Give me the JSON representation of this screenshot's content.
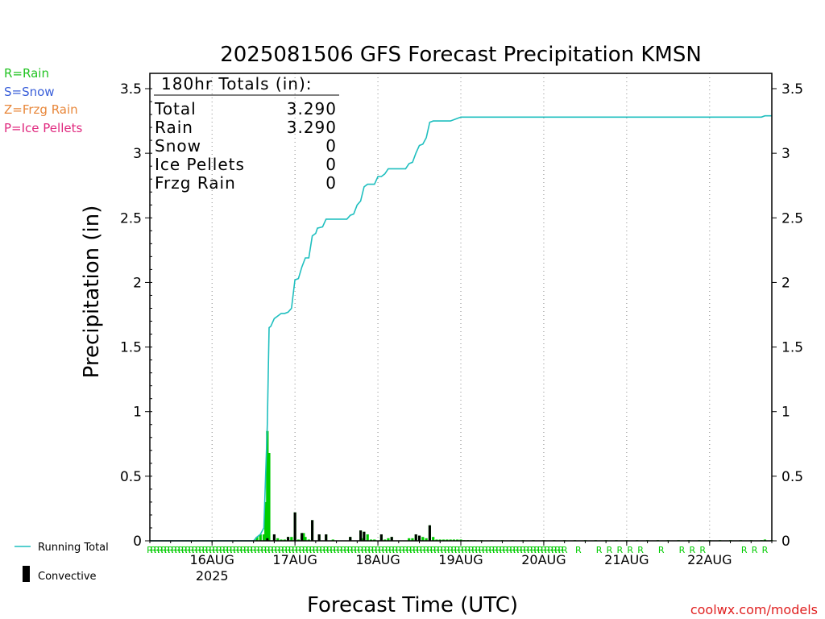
{
  "chart_data": {
    "type": "bar",
    "title": "2025081506 GFS Forecast Precipitation KMSN",
    "xlabel": "Forecast Time (UTC)",
    "ylabel": "Precipitation (in)",
    "ylim": [
      0,
      3.6
    ],
    "xlim_hours": [
      0,
      180
    ],
    "yticks": [
      "0",
      "0.5",
      "1",
      "1.5",
      "2",
      "2.5",
      "3",
      "3.5"
    ],
    "yticks_values": [
      0,
      0.5,
      1,
      1.5,
      2,
      2.5,
      3,
      3.5
    ],
    "xticks": [
      {
        "hour": 18,
        "label": "16AUG",
        "sub": "2025"
      },
      {
        "hour": 42,
        "label": "17AUG",
        "sub": ""
      },
      {
        "hour": 66,
        "label": "18AUG",
        "sub": ""
      },
      {
        "hour": 90,
        "label": "19AUG",
        "sub": ""
      },
      {
        "hour": 114,
        "label": "20AUG",
        "sub": ""
      },
      {
        "hour": 138,
        "label": "21AUG",
        "sub": ""
      },
      {
        "hour": 162,
        "label": "22AUG",
        "sub": ""
      }
    ],
    "grid": "vertical-dotted",
    "type_legend": [
      {
        "text": "R=Rain",
        "color": "#22c322"
      },
      {
        "text": "S=Snow",
        "color": "#3a5fd9"
      },
      {
        "text": "Z=Frzg Rain",
        "color": "#e8873a"
      },
      {
        "text": "P=Ice Pellets",
        "color": "#e0297f"
      }
    ],
    "series_legend": [
      {
        "text": "Running Total",
        "color": "#1fbfbf"
      },
      {
        "text": "Convective",
        "color": "#000000"
      }
    ],
    "totals_box": {
      "header": "180hr Totals (in):",
      "rows": [
        {
          "label": "Total",
          "value": "3.290"
        },
        {
          "label": "Rain",
          "value": "3.290"
        },
        {
          "label": "Snow",
          "value": "0"
        },
        {
          "label": "Ice Pellets",
          "value": "0"
        },
        {
          "label": "Frzg Rain",
          "value": "0"
        }
      ]
    },
    "running_total": [
      [
        0,
        0
      ],
      [
        30,
        0
      ],
      [
        31,
        0.03
      ],
      [
        32,
        0.05
      ],
      [
        33,
        0.1
      ],
      [
        34,
        0.9
      ],
      [
        34.5,
        1.65
      ],
      [
        35,
        1.66
      ],
      [
        36,
        1.72
      ],
      [
        37,
        1.74
      ],
      [
        38,
        1.76
      ],
      [
        39,
        1.76
      ],
      [
        40,
        1.77
      ],
      [
        41,
        1.8
      ],
      [
        42,
        2.02
      ],
      [
        43,
        2.03
      ],
      [
        44,
        2.12
      ],
      [
        45,
        2.19
      ],
      [
        46,
        2.19
      ],
      [
        47,
        2.36
      ],
      [
        48,
        2.38
      ],
      [
        48.5,
        2.42
      ],
      [
        50,
        2.43
      ],
      [
        51,
        2.49
      ],
      [
        57,
        2.49
      ],
      [
        58,
        2.52
      ],
      [
        59,
        2.53
      ],
      [
        60,
        2.6
      ],
      [
        61,
        2.63
      ],
      [
        62,
        2.74
      ],
      [
        63,
        2.76
      ],
      [
        65,
        2.76
      ],
      [
        66,
        2.82
      ],
      [
        67,
        2.82
      ],
      [
        68,
        2.84
      ],
      [
        69,
        2.88
      ],
      [
        74,
        2.88
      ],
      [
        75,
        2.92
      ],
      [
        76,
        2.93
      ],
      [
        77,
        3.0
      ],
      [
        78,
        3.06
      ],
      [
        79,
        3.07
      ],
      [
        80,
        3.12
      ],
      [
        81,
        3.24
      ],
      [
        82,
        3.25
      ],
      [
        87,
        3.25
      ],
      [
        88,
        3.26
      ],
      [
        89,
        3.27
      ],
      [
        90,
        3.28
      ],
      [
        177,
        3.28
      ],
      [
        178,
        3.29
      ],
      [
        180,
        3.29
      ]
    ],
    "bars": [
      [
        31,
        0.03
      ],
      [
        32,
        0.05
      ],
      [
        33,
        0.05
      ],
      [
        33.5,
        0.3
      ],
      [
        34,
        0.85
      ],
      [
        34.5,
        0.68
      ],
      [
        36,
        0.05
      ],
      [
        37,
        0.02
      ],
      [
        38,
        0.01
      ],
      [
        39,
        0.01
      ],
      [
        40,
        0.03
      ],
      [
        41,
        0.03
      ],
      [
        42,
        0.22
      ],
      [
        43,
        0.01
      ],
      [
        44,
        0.06
      ],
      [
        44.5,
        0.06
      ],
      [
        45,
        0.03
      ],
      [
        46,
        0.01
      ],
      [
        47,
        0.16
      ],
      [
        49,
        0.05
      ],
      [
        51,
        0.05
      ],
      [
        53,
        0.01
      ],
      [
        58,
        0.03
      ],
      [
        61,
        0.08
      ],
      [
        61.5,
        0.02
      ],
      [
        62,
        0.07
      ],
      [
        63,
        0.05
      ],
      [
        64,
        0.01
      ],
      [
        65,
        0.01
      ],
      [
        67,
        0.05
      ],
      [
        68,
        0.01
      ],
      [
        69,
        0.02
      ],
      [
        70,
        0.03
      ],
      [
        75,
        0.02
      ],
      [
        76,
        0.02
      ],
      [
        77,
        0.05
      ],
      [
        78,
        0.04
      ],
      [
        79,
        0.03
      ],
      [
        80,
        0.02
      ],
      [
        81,
        0.12
      ],
      [
        82,
        0.03
      ],
      [
        83,
        0.01
      ],
      [
        84,
        0.01
      ],
      [
        85,
        0.01
      ],
      [
        86,
        0.01
      ],
      [
        87,
        0.01
      ],
      [
        88,
        0.01
      ],
      [
        89,
        0.01
      ],
      [
        90,
        0.01
      ],
      [
        91,
        0.005
      ],
      [
        92,
        0.005
      ],
      [
        93,
        0.005
      ],
      [
        94,
        0.005
      ],
      [
        96,
        0.005
      ],
      [
        99,
        0.005
      ],
      [
        102,
        0.005
      ],
      [
        105,
        0.005
      ],
      [
        108,
        0.005
      ],
      [
        111,
        0.005
      ],
      [
        114,
        0.005
      ],
      [
        117,
        0.005
      ],
      [
        120,
        0.005
      ],
      [
        123,
        0.005
      ],
      [
        126,
        0.005
      ],
      [
        129,
        0.005
      ],
      [
        132,
        0.005
      ],
      [
        135,
        0.005
      ],
      [
        138,
        0.005
      ],
      [
        141,
        0.005
      ],
      [
        144,
        0.005
      ],
      [
        147,
        0.005
      ],
      [
        150,
        0.005
      ],
      [
        153,
        0.005
      ],
      [
        156,
        0.005
      ],
      [
        159,
        0.005
      ],
      [
        162,
        0.005
      ],
      [
        165,
        0.005
      ],
      [
        168,
        0.005
      ],
      [
        171,
        0.005
      ],
      [
        174,
        0.005
      ],
      [
        177,
        0.005
      ],
      [
        178,
        0.01
      ],
      [
        180,
        0.005
      ]
    ],
    "convective_bars": [
      [
        34,
        0.02
      ],
      [
        36,
        0.05
      ],
      [
        40,
        0.03
      ],
      [
        42,
        0.22
      ],
      [
        44,
        0.06
      ],
      [
        47,
        0.16
      ],
      [
        49,
        0.05
      ],
      [
        51,
        0.05
      ],
      [
        58,
        0.03
      ],
      [
        61,
        0.08
      ],
      [
        62,
        0.07
      ],
      [
        67,
        0.05
      ],
      [
        70,
        0.03
      ],
      [
        77,
        0.05
      ],
      [
        78,
        0.04
      ],
      [
        81,
        0.12
      ]
    ],
    "rain_markers": {
      "dense_until_hour": 120,
      "sparse_hours": [
        124,
        130,
        133,
        136,
        139,
        142,
        148,
        154,
        157,
        160,
        172,
        175,
        178
      ],
      "letter": "R"
    },
    "watermark": "coolwx.com/models"
  }
}
